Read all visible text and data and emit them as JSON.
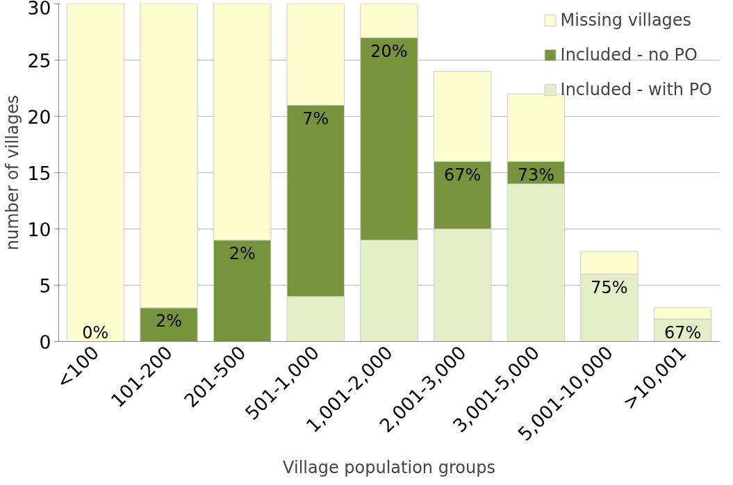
{
  "chart_data": {
    "type": "bar",
    "stacked": true,
    "xlabel": "Village population groups",
    "ylabel": "number of villages",
    "categories": [
      "<100",
      "101-200",
      "201-500",
      "501-1,000",
      "1,001-2,000",
      "2,001-3,000",
      "3,001-5,000",
      "5,001-10,000",
      ">10,001"
    ],
    "series": [
      {
        "name": "Included - with PO",
        "color": "#e4efc8",
        "values": [
          0,
          0,
          0,
          4,
          9,
          10,
          14,
          6,
          2
        ]
      },
      {
        "name": "Included - no PO",
        "color": "#77933c",
        "values": [
          0,
          3,
          9,
          17,
          18,
          6,
          2,
          0,
          0
        ]
      },
      {
        "name": "Missing villages",
        "color": "#fdfdd0",
        "values": [
          30,
          27,
          21,
          9,
          3,
          8,
          6,
          2,
          1
        ]
      }
    ],
    "ylim": [
      0,
      30
    ],
    "yticks": [
      0,
      5,
      10,
      15,
      20,
      25,
      30
    ],
    "grid": "y",
    "legend": "top right",
    "annotations": [
      "0%",
      "2%",
      "2%",
      "7%",
      "20%",
      "67%",
      "73%",
      "75%",
      "67%"
    ]
  }
}
